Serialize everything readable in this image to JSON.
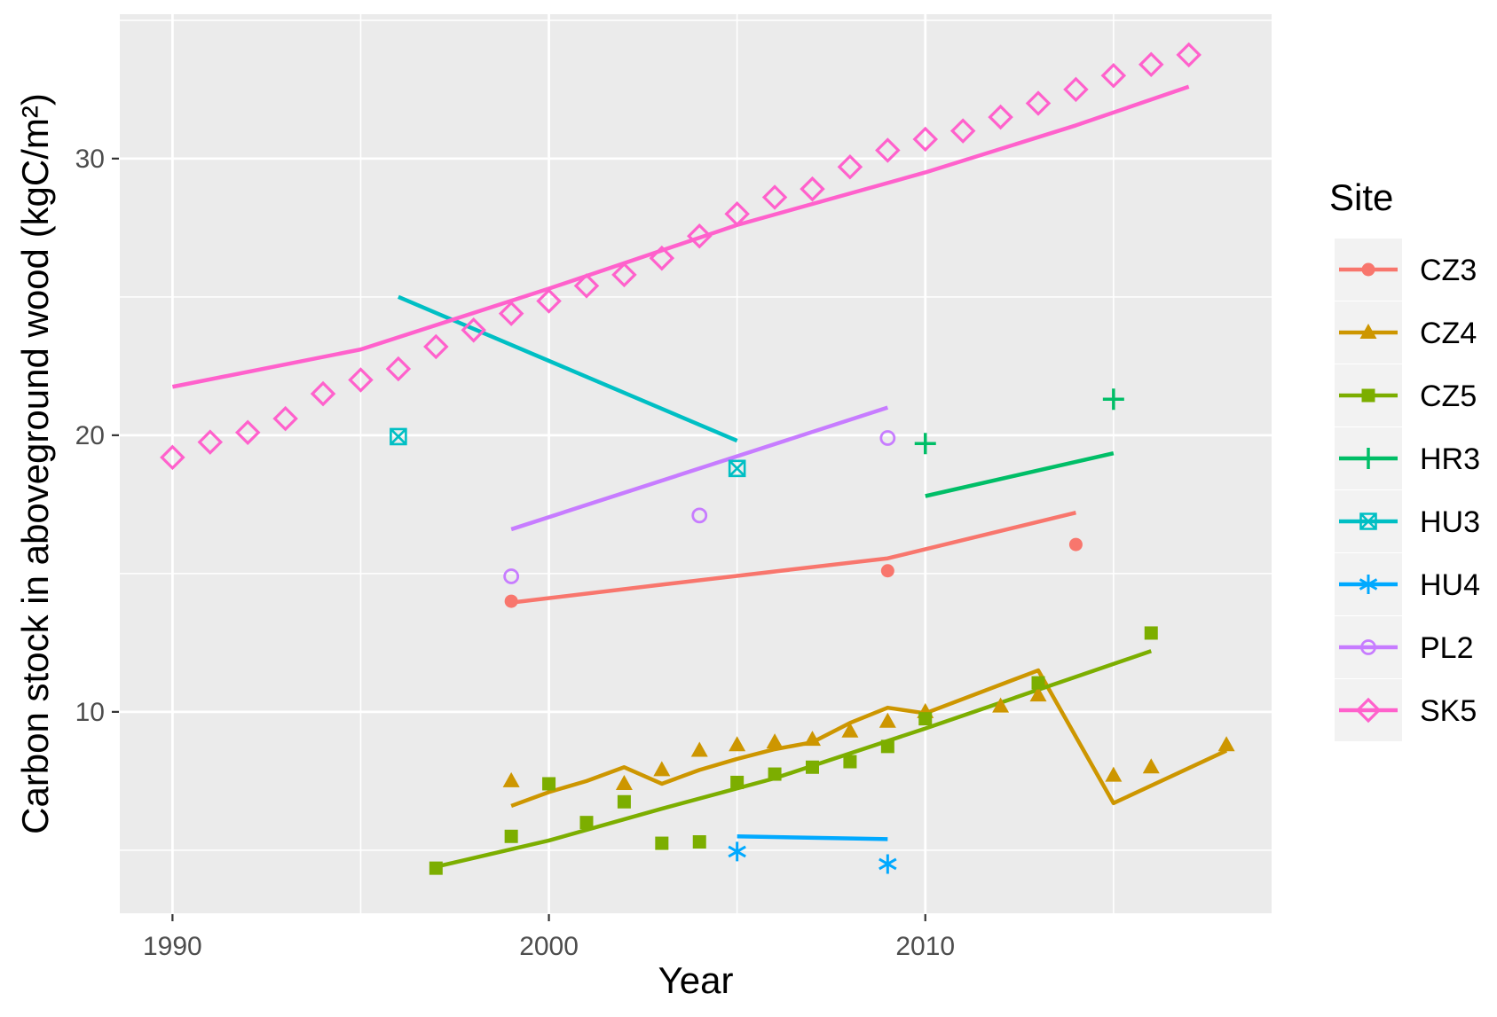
{
  "figure": {
    "panel_bg": "#EBEBEB",
    "grid_color": "#FFFFFF",
    "tick_color": "#333333",
    "tick_label_color": "#4D4D4D",
    "axis_title_color": "#000000",
    "legend_key_bg": "#F2F2F2"
  },
  "chart_data": {
    "type": "scatter",
    "title": "",
    "xlabel": "Year",
    "ylabel": "Carbon stock in aboveground wood (kgC/m²)",
    "xlim": [
      1988.6,
      2019.2
    ],
    "ylim": [
      2.72,
      35.22
    ],
    "grid": true,
    "legend_position": "right",
    "legend_title": "Site",
    "x_ticks": [
      1990,
      2000,
      2010
    ],
    "x_tick_labels": [
      "1990",
      "2000",
      "2010"
    ],
    "x_minor": [
      1995,
      2005,
      2015
    ],
    "y_ticks": [
      10,
      20,
      30
    ],
    "y_tick_labels": [
      "10",
      "20",
      "30"
    ],
    "y_minor": [
      5,
      15,
      25,
      35
    ],
    "series": [
      {
        "name": "CZ3",
        "color": "#F8766D",
        "marker": "circle-filled",
        "points": [
          [
            1999,
            14.0
          ],
          [
            2009,
            15.1
          ],
          [
            2014,
            16.05
          ]
        ],
        "trend": [
          [
            1999,
            13.95
          ],
          [
            2003,
            14.6
          ],
          [
            2009,
            15.55
          ],
          [
            2014,
            17.2
          ]
        ]
      },
      {
        "name": "CZ4",
        "color": "#CD9600",
        "marker": "triangle-filled",
        "points": [
          [
            1999,
            7.5
          ],
          [
            2002,
            7.4
          ],
          [
            2003,
            7.9
          ],
          [
            2004,
            8.6
          ],
          [
            2005,
            8.8
          ],
          [
            2006,
            8.9
          ],
          [
            2007,
            9.0
          ],
          [
            2008,
            9.3
          ],
          [
            2009,
            9.65
          ],
          [
            2010,
            10.0
          ],
          [
            2012,
            10.2
          ],
          [
            2013,
            10.6
          ],
          [
            2015,
            7.7
          ],
          [
            2016,
            8.0
          ],
          [
            2018,
            8.8
          ]
        ],
        "trend": [
          [
            1999,
            6.6
          ],
          [
            2000,
            7.1
          ],
          [
            2001,
            7.5
          ],
          [
            2002,
            8.0
          ],
          [
            2003,
            7.4
          ],
          [
            2004,
            7.9
          ],
          [
            2005,
            8.3
          ],
          [
            2006,
            8.65
          ],
          [
            2007,
            8.9
          ],
          [
            2008,
            9.6
          ],
          [
            2009,
            10.15
          ],
          [
            2010,
            9.95
          ],
          [
            2013,
            11.5
          ],
          [
            2015,
            6.7
          ],
          [
            2018,
            8.6
          ]
        ]
      },
      {
        "name": "CZ5",
        "color": "#7CAE00",
        "marker": "square-filled",
        "points": [
          [
            1997,
            4.35
          ],
          [
            1999,
            5.5
          ],
          [
            2000,
            7.4
          ],
          [
            2001,
            6.0
          ],
          [
            2002,
            6.75
          ],
          [
            2003,
            5.25
          ],
          [
            2004,
            5.3
          ],
          [
            2005,
            7.45
          ],
          [
            2006,
            7.75
          ],
          [
            2007,
            8.0
          ],
          [
            2008,
            8.2
          ],
          [
            2009,
            8.75
          ],
          [
            2010,
            9.75
          ],
          [
            2013,
            11.05
          ],
          [
            2016,
            12.85
          ]
        ],
        "trend": [
          [
            1997,
            4.4
          ],
          [
            2000,
            5.35
          ],
          [
            2003,
            6.5
          ],
          [
            2006,
            7.6
          ],
          [
            2010,
            9.4
          ],
          [
            2013,
            10.8
          ],
          [
            2016,
            12.2
          ]
        ]
      },
      {
        "name": "HR3",
        "color": "#00BE67",
        "marker": "plus",
        "points": [
          [
            2010,
            19.7
          ],
          [
            2015,
            21.3
          ]
        ],
        "trend": [
          [
            2010,
            17.8
          ],
          [
            2015,
            19.35
          ]
        ]
      },
      {
        "name": "HU3",
        "color": "#00BFC4",
        "marker": "square-x",
        "points": [
          [
            1996,
            19.95
          ],
          [
            2005,
            18.8
          ]
        ],
        "trend": [
          [
            1996,
            25.0
          ],
          [
            2005,
            19.8
          ]
        ]
      },
      {
        "name": "HU4",
        "color": "#00A9FF",
        "marker": "asterisk",
        "points": [
          [
            2005,
            4.95
          ],
          [
            2009,
            4.5
          ]
        ],
        "trend": [
          [
            2005,
            5.5
          ],
          [
            2009,
            5.4
          ]
        ]
      },
      {
        "name": "PL2",
        "color": "#C77CFF",
        "marker": "circle-open",
        "points": [
          [
            1999,
            14.9
          ],
          [
            2004,
            17.1
          ],
          [
            2009,
            19.9
          ]
        ],
        "trend": [
          [
            1999,
            16.6
          ],
          [
            2009,
            21.0
          ]
        ]
      },
      {
        "name": "SK5",
        "color": "#FF61CC",
        "marker": "diamond-open",
        "points": [
          [
            1990,
            19.2
          ],
          [
            1991,
            19.75
          ],
          [
            1992,
            20.1
          ],
          [
            1993,
            20.6
          ],
          [
            1994,
            21.5
          ],
          [
            1995,
            22.0
          ],
          [
            1996,
            22.4
          ],
          [
            1997,
            23.2
          ],
          [
            1998,
            23.8
          ],
          [
            1999,
            24.4
          ],
          [
            2000,
            24.85
          ],
          [
            2001,
            25.4
          ],
          [
            2002,
            25.8
          ],
          [
            2003,
            26.4
          ],
          [
            2004,
            27.2
          ],
          [
            2005,
            28.0
          ],
          [
            2006,
            28.6
          ],
          [
            2007,
            28.9
          ],
          [
            2008,
            29.7
          ],
          [
            2009,
            30.3
          ],
          [
            2010,
            30.7
          ],
          [
            2011,
            31.0
          ],
          [
            2012,
            31.5
          ],
          [
            2013,
            32.0
          ],
          [
            2014,
            32.5
          ],
          [
            2015,
            33.0
          ],
          [
            2016,
            33.4
          ],
          [
            2017,
            33.75
          ]
        ],
        "trend": [
          [
            1990,
            21.75
          ],
          [
            1995,
            23.1
          ],
          [
            2000,
            25.3
          ],
          [
            2005,
            27.6
          ],
          [
            2010,
            29.5
          ],
          [
            2014,
            31.2
          ],
          [
            2017,
            32.6
          ]
        ]
      }
    ]
  }
}
